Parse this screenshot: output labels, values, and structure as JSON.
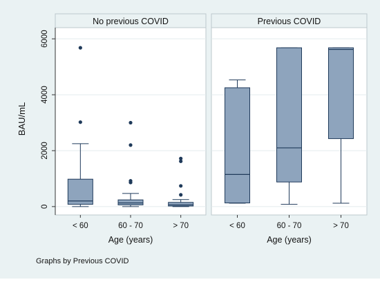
{
  "chart_data": {
    "type": "box",
    "ylabel": "BAU/mL",
    "xlabel": "Age (years)",
    "ylim": [
      -300,
      6400
    ],
    "yticks": [
      0,
      2000,
      4000,
      6000
    ],
    "categories": [
      "< 60",
      "60 - 70",
      "> 70"
    ],
    "note": "Graphs by Previous COVID",
    "grid": true,
    "panels": [
      {
        "title": "No previous COVID",
        "boxes": [
          {
            "category": "< 60",
            "whisker_low": 0,
            "q1": 80,
            "median": 200,
            "q3": 980,
            "whisker_high": 2250,
            "outliers": [
              3020,
              5680
            ]
          },
          {
            "category": "60 - 70",
            "whisker_low": 0,
            "q1": 60,
            "median": 130,
            "q3": 240,
            "whisker_high": 470,
            "outliers": [
              860,
              920,
              2200,
              3000
            ]
          },
          {
            "category": "> 70",
            "whisker_low": 0,
            "q1": 20,
            "median": 60,
            "q3": 150,
            "whisker_high": 250,
            "outliers": [
              420,
              740,
              1620,
              1720
            ]
          }
        ]
      },
      {
        "title": "Previous COVID",
        "boxes": [
          {
            "category": "< 60",
            "whisker_low": 120,
            "q1": 130,
            "median": 1150,
            "q3": 4250,
            "whisker_high": 4530,
            "outliers": []
          },
          {
            "category": "60 - 70",
            "whisker_low": 80,
            "q1": 880,
            "median": 2100,
            "q3": 5680,
            "whisker_high": 5680,
            "outliers": []
          },
          {
            "category": "> 70",
            "whisker_low": 120,
            "q1": 2430,
            "median": 5620,
            "q3": 5680,
            "whisker_high": 5680,
            "outliers": []
          }
        ]
      }
    ],
    "colors": {
      "box_fill": "#8ea4bd",
      "box_stroke": "#1f3a5a",
      "outlier": "#1f3a5a",
      "panel_bg": "#ffffff",
      "title_strip": "#eaf2f3",
      "figure_bg": "#eaf2f3",
      "grid": "#e3ebee"
    }
  }
}
